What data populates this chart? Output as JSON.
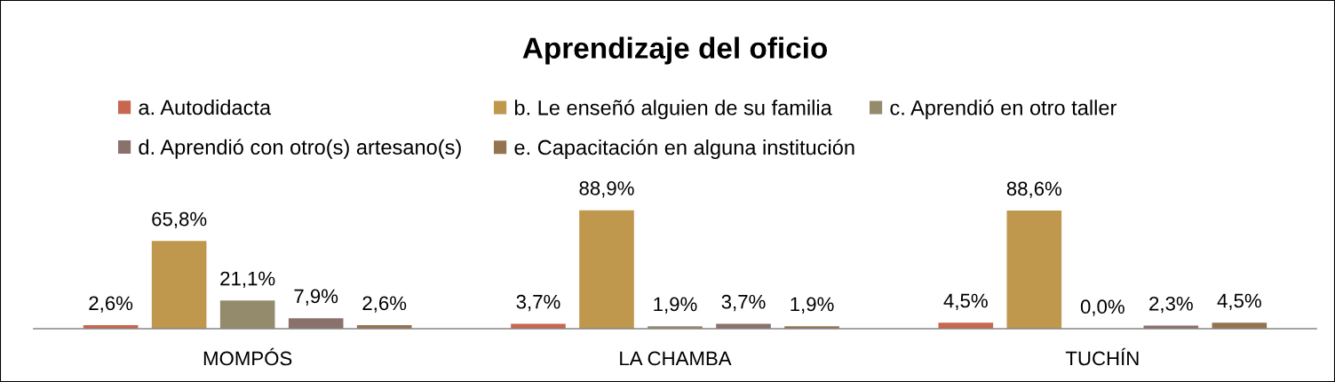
{
  "chart_data": {
    "type": "bar",
    "title": "Aprendizaje del oficio",
    "categories": [
      "MOMPÓS",
      "LA CHAMBA",
      "TUCHÍN"
    ],
    "series": [
      {
        "name": "a. Autodidacta",
        "color": "#c8664f",
        "values": [
          2.6,
          3.7,
          4.5
        ],
        "value_labels": [
          "2,6%",
          "3,7%",
          "4,5%"
        ]
      },
      {
        "name": "b. Le enseñó alguien de su familia",
        "color": "#bf974d",
        "values": [
          65.8,
          88.9,
          88.6
        ],
        "value_labels": [
          "65,8%",
          "88,9%",
          "88,6%"
        ]
      },
      {
        "name": "c. Aprendió en otro taller",
        "color": "#948b6d",
        "values": [
          21.1,
          1.9,
          0.0
        ],
        "value_labels": [
          "21,1%",
          "1,9%",
          "0,0%"
        ]
      },
      {
        "name": "d. Aprendió con otro(s) artesano(s)",
        "color": "#8b716b",
        "values": [
          7.9,
          3.7,
          2.3
        ],
        "value_labels": [
          "7,9%",
          "3,7%",
          "2,3%"
        ]
      },
      {
        "name": "e. Capacitación en alguna institución",
        "color": "#94744f",
        "values": [
          2.6,
          1.9,
          4.5
        ],
        "value_labels": [
          "2,6%",
          "1,9%",
          "4,5%"
        ]
      }
    ],
    "legend": "top",
    "tick_labels": "x"
  }
}
